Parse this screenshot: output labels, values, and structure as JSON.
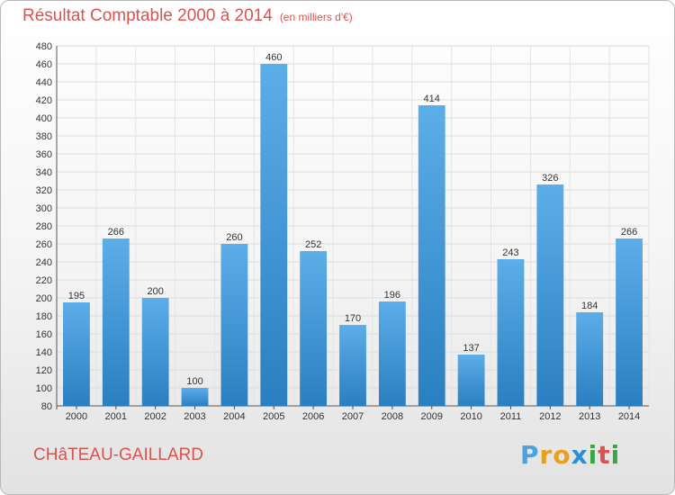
{
  "header": {
    "title": "Résultat Comptable 2000 à 2014",
    "unit": "(en milliers d'€)"
  },
  "footer": {
    "place": "CHâTEAU-GAILLARD",
    "logo_letters": [
      "P",
      "r",
      "o",
      "x",
      "i",
      "t",
      "i"
    ]
  },
  "colors": {
    "title": "#d9534f",
    "bar_top": "#5caee8",
    "bar_bottom": "#2a7fc0",
    "logo": [
      "#4aa3df",
      "#e8a020",
      "#e8a020",
      "#2d8ed6",
      "#3aa64a",
      "#d9534f",
      "#3aa64a"
    ]
  },
  "chart_data": {
    "type": "bar",
    "title": "Résultat Comptable 2000 à 2014",
    "subtitle": "(en milliers d'€)",
    "categories": [
      "2000",
      "2001",
      "2002",
      "2003",
      "2004",
      "2005",
      "2006",
      "2007",
      "2008",
      "2009",
      "2010",
      "2011",
      "2012",
      "2013",
      "2014"
    ],
    "values": [
      195,
      266,
      200,
      100,
      260,
      460,
      252,
      170,
      196,
      414,
      137,
      243,
      326,
      184,
      266
    ],
    "ylim": [
      80,
      480
    ],
    "ytick_step": 20,
    "grid": true
  }
}
